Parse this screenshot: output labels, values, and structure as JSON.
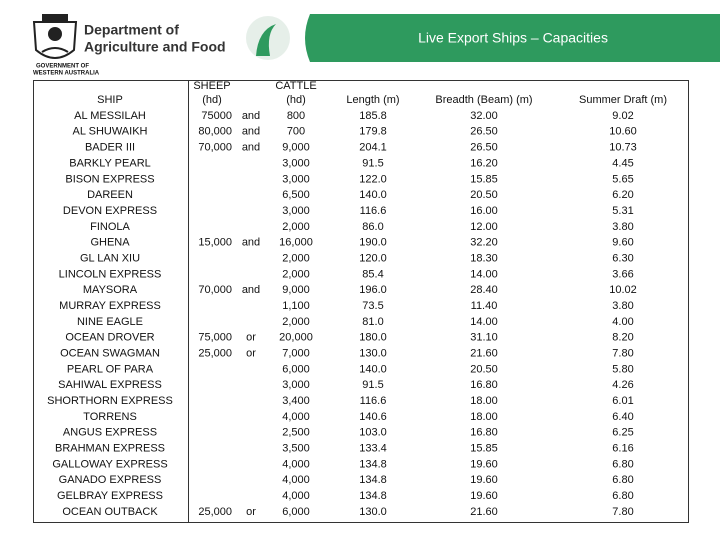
{
  "header": {
    "department": [
      "Department of",
      "Agriculture and Food"
    ],
    "government": [
      "GOVERNMENT OF",
      "WESTERN AUSTRALIA"
    ],
    "title": "Live Export Ships – Capacities"
  },
  "table": {
    "columns": {
      "ship": "SHIP",
      "sheep": [
        "SHEEP",
        "(hd)"
      ],
      "cattle": [
        "CATTLE",
        "(hd)"
      ],
      "length": "Length (m)",
      "breadth": "Breadth (Beam) (m)",
      "draft": "Summer Draft  (m)"
    },
    "rows": [
      {
        "ship": "AL MESSILAH",
        "sheep": "75000",
        "conj": "and",
        "cattle": "800",
        "length": "185.8",
        "breadth": "32.00",
        "draft": "9.02"
      },
      {
        "ship": "AL SHUWAIKH",
        "sheep": "80,000",
        "conj": "and",
        "cattle": "700",
        "length": "179.8",
        "breadth": "26.50",
        "draft": "10.60"
      },
      {
        "ship": "BADER III",
        "sheep": "70,000",
        "conj": "and",
        "cattle": "9,000",
        "length": "204.1",
        "breadth": "26.50",
        "draft": "10.73"
      },
      {
        "ship": "BARKLY PEARL",
        "cattle": "3,000",
        "length": "91.5",
        "breadth": "16.20",
        "draft": "4.45"
      },
      {
        "ship": "BISON EXPRESS",
        "cattle": "3,000",
        "length": "122.0",
        "breadth": "15.85",
        "draft": "5.65"
      },
      {
        "ship": "DAREEN",
        "cattle": "6,500",
        "length": "140.0",
        "breadth": "20.50",
        "draft": "6.20"
      },
      {
        "ship": "DEVON EXPRESS",
        "cattle": "3,000",
        "length": "116.6",
        "breadth": "16.00",
        "draft": "5.31"
      },
      {
        "ship": "FINOLA",
        "cattle": "2,000",
        "length": "86.0",
        "breadth": "12.00",
        "draft": "3.80"
      },
      {
        "ship": "GHENA",
        "sheep": "15,000",
        "conj": "and",
        "cattle": "16,000",
        "length": "190.0",
        "breadth": "32.20",
        "draft": "9.60"
      },
      {
        "ship": "GL LAN XIU",
        "cattle": "2,000",
        "length": "120.0",
        "breadth": "18.30",
        "draft": "6.30"
      },
      {
        "ship": "LINCOLN EXPRESS",
        "cattle": "2,000",
        "length": "85.4",
        "breadth": "14.00",
        "draft": "3.66"
      },
      {
        "ship": "MAYSORA",
        "sheep": "70,000",
        "conj": "and",
        "cattle": "9,000",
        "length": "196.0",
        "breadth": "28.40",
        "draft": "10.02"
      },
      {
        "ship": "MURRAY EXPRESS",
        "cattle": "1,100",
        "length": "73.5",
        "breadth": "11.40",
        "draft": "3.80"
      },
      {
        "ship": "NINE EAGLE",
        "cattle": "2,000",
        "length": "81.0",
        "breadth": "14.00",
        "draft": "4.00"
      },
      {
        "ship": "OCEAN DROVER",
        "sheep": "75,000",
        "conj": "or",
        "cattle": "20,000",
        "length": "180.0",
        "breadth": "31.10",
        "draft": "8.20"
      },
      {
        "ship": "OCEAN SWAGMAN",
        "sheep": "25,000",
        "conj": "or",
        "cattle": "7,000",
        "length": "130.0",
        "breadth": "21.60",
        "draft": "7.80"
      },
      {
        "ship": "PEARL OF PARA",
        "cattle": "6,000",
        "length": "140.0",
        "breadth": "20.50",
        "draft": "5.80"
      },
      {
        "ship": "SAHIWAL EXPRESS",
        "cattle": "3,000",
        "length": "91.5",
        "breadth": "16.80",
        "draft": "4.26"
      },
      {
        "ship": "SHORTHORN EXPRESS",
        "cattle": "3,400",
        "length": "116.6",
        "breadth": "18.00",
        "draft": "6.01"
      },
      {
        "ship": "TORRENS",
        "cattle": "4,000",
        "length": "140.6",
        "breadth": "18.00",
        "draft": "6.40"
      },
      {
        "ship": "ANGUS EXPRESS",
        "cattle": "2,500",
        "length": "103.0",
        "breadth": "16.80",
        "draft": "6.25"
      },
      {
        "ship": "BRAHMAN EXPRESS",
        "cattle": "3,500",
        "length": "133.4",
        "breadth": "15.85",
        "draft": "6.16"
      },
      {
        "ship": "GALLOWAY EXPRESS",
        "cattle": "4,000",
        "length": "134.8",
        "breadth": "19.60",
        "draft": "6.80"
      },
      {
        "ship": "GANADO EXPRESS",
        "cattle": "4,000",
        "length": "134.8",
        "breadth": "19.60",
        "draft": "6.80"
      },
      {
        "ship": "GELBRAY EXPRESS",
        "cattle": "4,000",
        "length": "134.8",
        "breadth": "19.60",
        "draft": "6.80"
      },
      {
        "ship": "OCEAN OUTBACK",
        "sheep": "25,000",
        "conj": "or",
        "cattle": "6,000",
        "length": "130.0",
        "breadth": "21.60",
        "draft": "7.80"
      }
    ]
  }
}
